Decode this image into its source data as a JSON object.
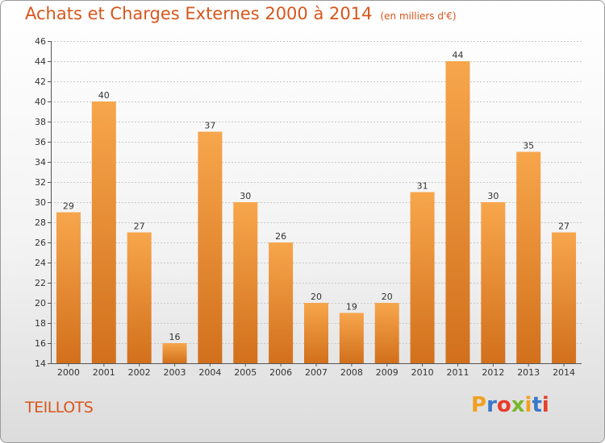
{
  "header": {
    "title": "Achats et Charges Externes 2000 à 2014",
    "unit": "(en milliers d'€)"
  },
  "footer": {
    "place": "TEILLOTS",
    "logo_letters": [
      "P",
      "r",
      "o",
      "x",
      "i",
      "t",
      "i"
    ],
    "logo_colors": [
      "#f0a020",
      "#3a78c8",
      "#e83c2c",
      "#7ab82e",
      "#f0a020",
      "#3a78c8",
      "#e83c2c"
    ]
  },
  "colors": {
    "bar_top": "#f7a64c",
    "bar_bottom": "#d2701c",
    "title": "#d8561c"
  },
  "chart_data": {
    "type": "bar",
    "categories": [
      "2000",
      "2001",
      "2002",
      "2003",
      "2004",
      "2005",
      "2006",
      "2007",
      "2008",
      "2009",
      "2010",
      "2011",
      "2012",
      "2013",
      "2014"
    ],
    "values": [
      29,
      40,
      27,
      16,
      37,
      30,
      26,
      20,
      19,
      20,
      31,
      44,
      30,
      35,
      27
    ],
    "ylim": [
      14,
      46
    ],
    "yticks": [
      14,
      16,
      18,
      20,
      22,
      24,
      26,
      28,
      30,
      32,
      34,
      36,
      38,
      40,
      42,
      44,
      46
    ],
    "grid": true,
    "title": "Achats et Charges Externes 2000 à 2014"
  }
}
